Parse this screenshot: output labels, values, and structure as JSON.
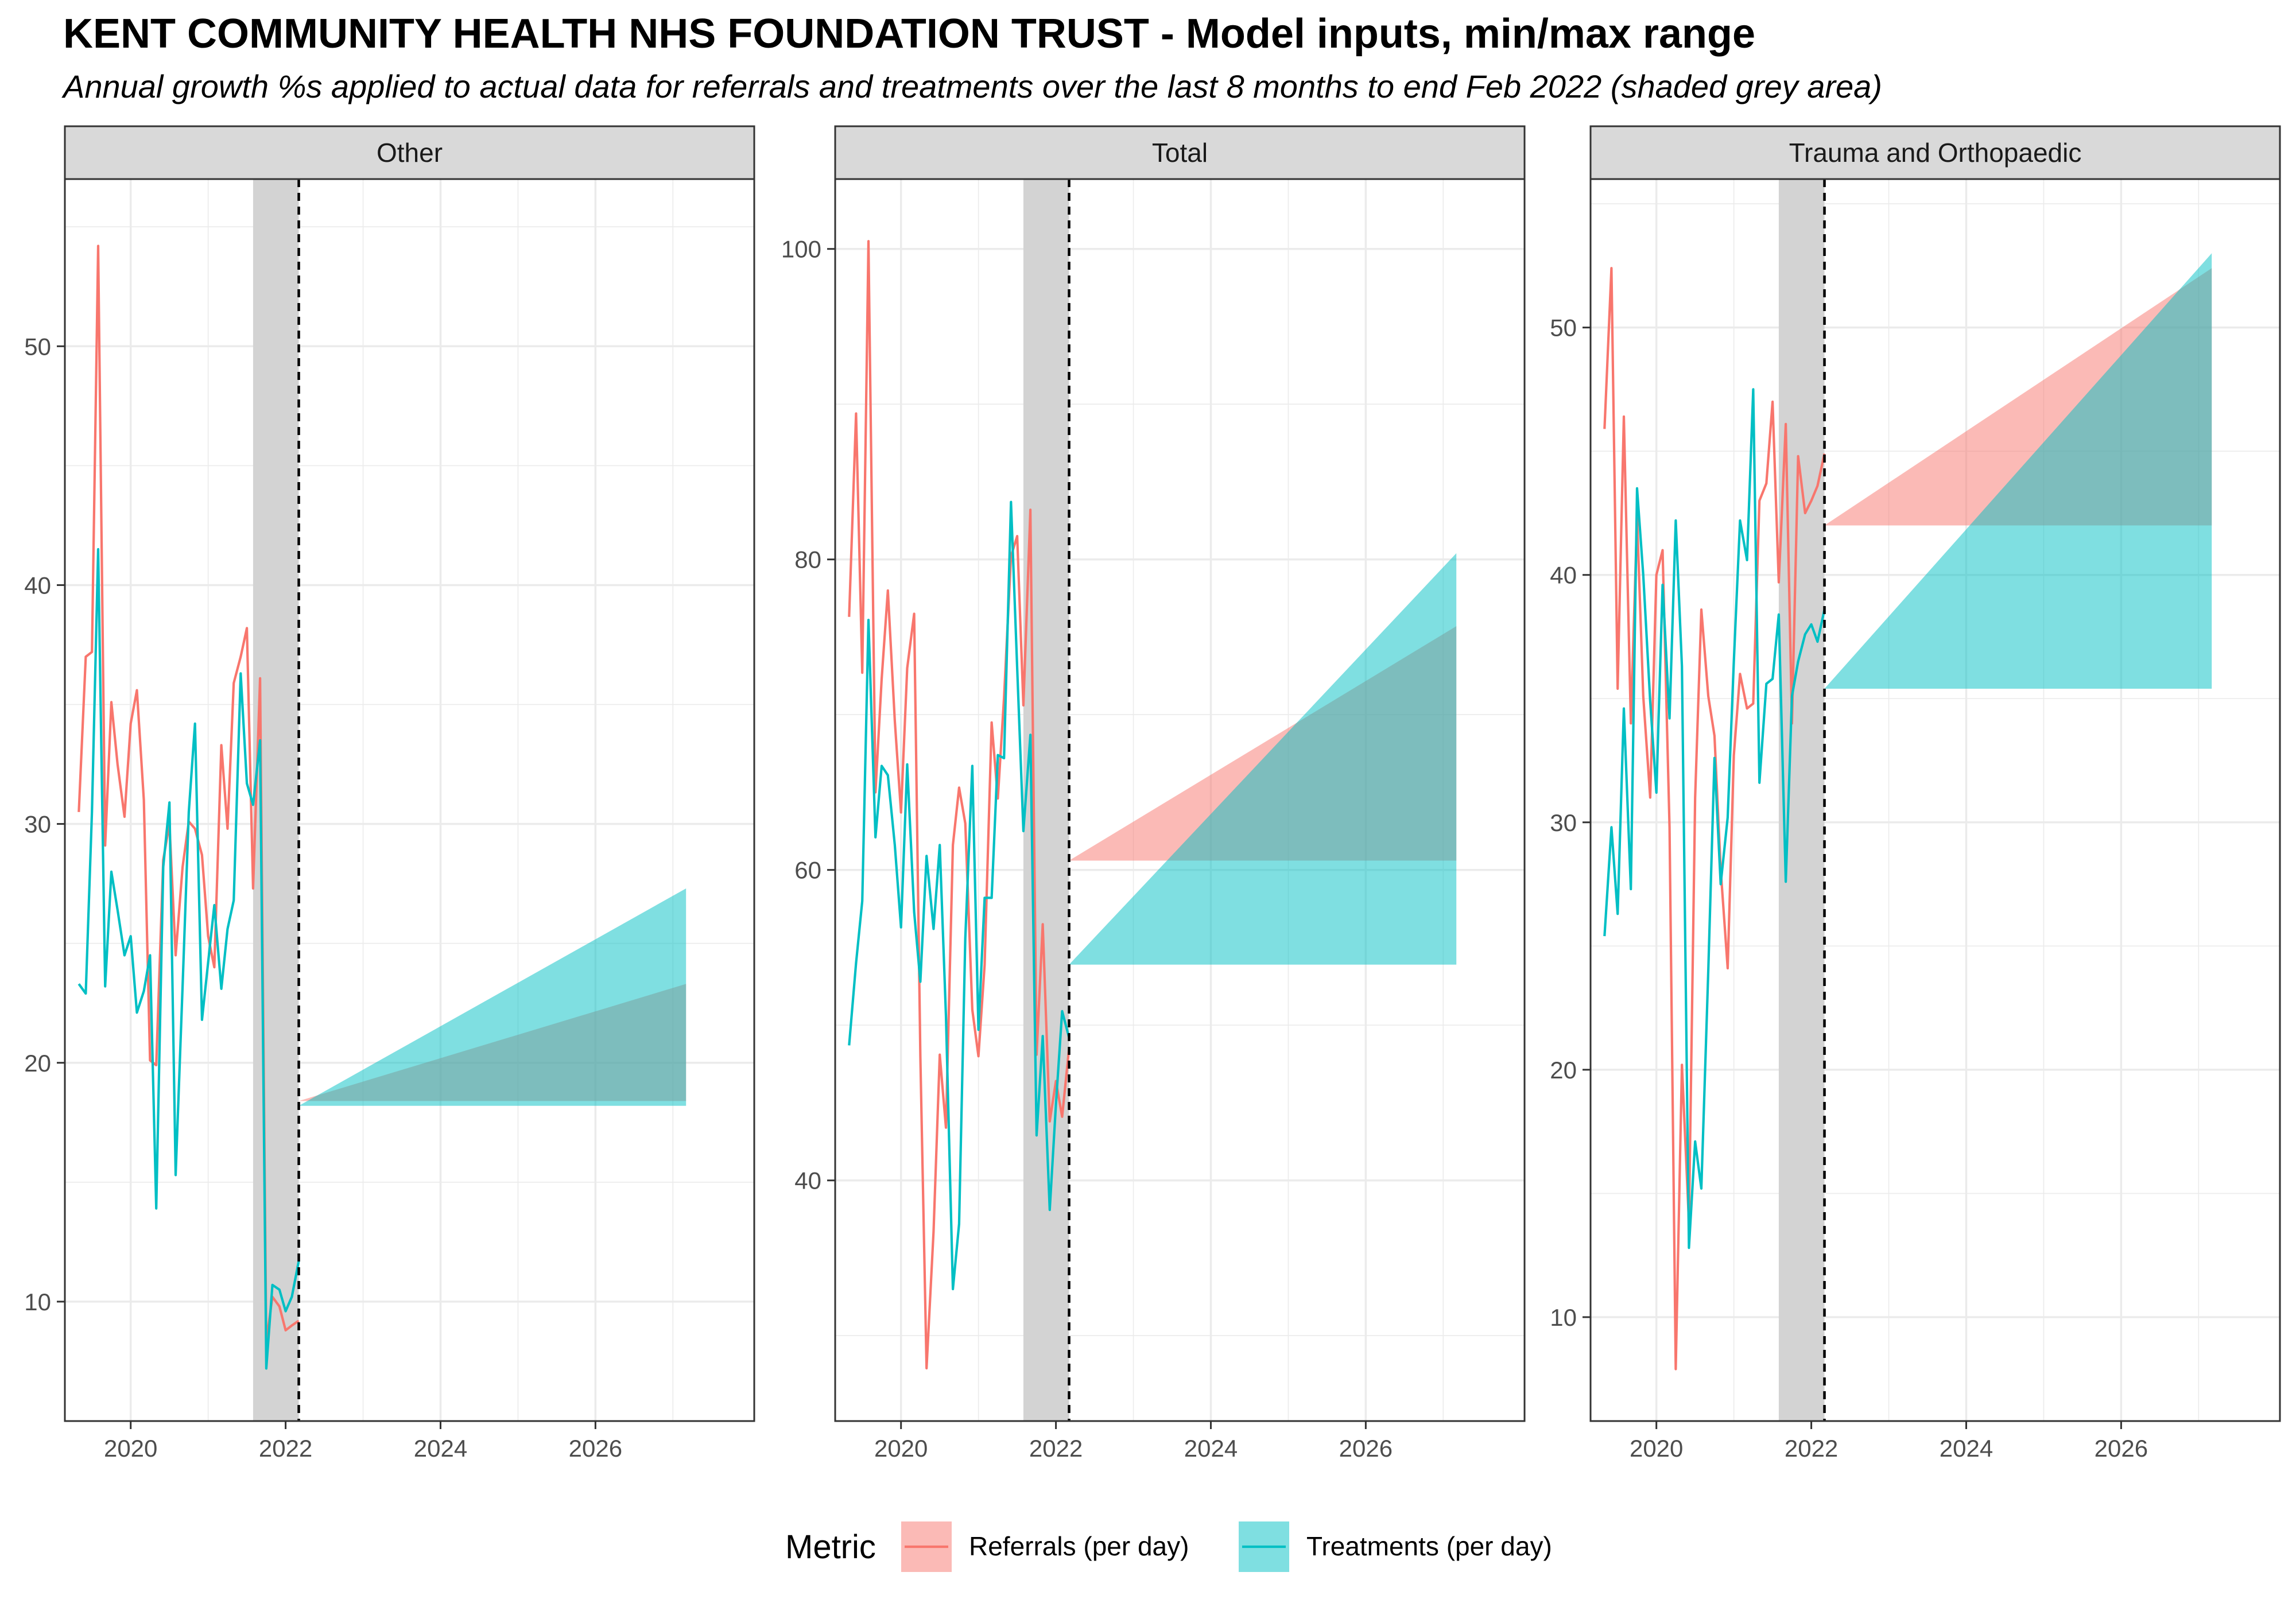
{
  "title": "KENT COMMUNITY HEALTH NHS FOUNDATION TRUST - Model inputs, min/max range",
  "subtitle": "Annual growth %s applied to actual data for referrals and treatments over the last 8 months to end Feb 2022 (shaded grey area)",
  "colors": {
    "referrals": "#F8766D",
    "treatments": "#00BFC4",
    "shade": "#d3d3d3",
    "strip": "#d9d9d9",
    "grid": "#ebebeb"
  },
  "legend": {
    "title": "Metric",
    "items": [
      "Referrals (per day)",
      "Treatments (per day)"
    ],
    "position": "bottom"
  },
  "chart_data": [
    {
      "type": "line",
      "panel": "Other",
      "xlim": [
        2019.15,
        2028.05
      ],
      "ylim": [
        5,
        57
      ],
      "xticks": [
        2020,
        2022,
        2024,
        2026
      ],
      "yticks": [
        10,
        20,
        30,
        40,
        50
      ],
      "shaded_period": [
        2021.58,
        2022.17
      ],
      "cutoff": 2022.17,
      "series": [
        {
          "name": "Referrals (per day)",
          "x": [
            2019.33,
            2019.42,
            2019.5,
            2019.58,
            2019.67,
            2019.75,
            2019.83,
            2019.92,
            2020.0,
            2020.08,
            2020.17,
            2020.25,
            2020.33,
            2020.42,
            2020.5,
            2020.58,
            2020.67,
            2020.75,
            2020.83,
            2020.92,
            2021.0,
            2021.08,
            2021.17,
            2021.25,
            2021.33,
            2021.42,
            2021.5,
            2021.58,
            2021.67,
            2021.75,
            2021.83,
            2021.92,
            2022.0,
            2022.08,
            2022.17
          ],
          "y": [
            30.5,
            37.0,
            37.2,
            54.2,
            29.1,
            35.1,
            32.5,
            30.3,
            34.2,
            35.6,
            31.0,
            20.1,
            19.9,
            28.5,
            30.0,
            24.5,
            28.2,
            30.1,
            29.8,
            28.7,
            25.3,
            24.0,
            33.3,
            29.8,
            35.9,
            37.0,
            38.2,
            27.3,
            36.1,
            8.3,
            10.2,
            9.8,
            8.8,
            9.0,
            9.2
          ]
        },
        {
          "name": "Treatments (per day)",
          "x": [
            2019.33,
            2019.42,
            2019.5,
            2019.58,
            2019.67,
            2019.75,
            2019.83,
            2019.92,
            2020.0,
            2020.08,
            2020.17,
            2020.25,
            2020.33,
            2020.42,
            2020.5,
            2020.58,
            2020.67,
            2020.75,
            2020.83,
            2020.92,
            2021.0,
            2021.08,
            2021.17,
            2021.25,
            2021.33,
            2021.42,
            2021.5,
            2021.58,
            2021.67,
            2021.75,
            2021.83,
            2021.92,
            2022.0,
            2022.08,
            2022.17
          ],
          "y": [
            23.3,
            22.9,
            30.5,
            41.5,
            23.2,
            28.0,
            26.4,
            24.5,
            25.3,
            22.1,
            23.0,
            24.5,
            13.9,
            28.2,
            30.9,
            15.3,
            23.2,
            30.5,
            34.2,
            21.8,
            24.2,
            26.6,
            23.1,
            25.6,
            26.8,
            36.3,
            31.7,
            30.8,
            33.5,
            7.2,
            10.7,
            10.5,
            9.6,
            10.2,
            11.7
          ]
        }
      ],
      "projection_ranges": [
        {
          "name": "Referrals (per day)",
          "x_start": 2022.17,
          "x_end": 2027.17,
          "min": [
            18.4,
            18.4
          ],
          "max": [
            18.4,
            23.3
          ]
        },
        {
          "name": "Treatments (per day)",
          "x_start": 2022.17,
          "x_end": 2027.17,
          "min": [
            18.2,
            18.2
          ],
          "max": [
            18.2,
            27.3
          ]
        }
      ]
    },
    {
      "type": "line",
      "panel": "Total",
      "xlim": [
        2019.15,
        2028.05
      ],
      "ylim": [
        24.5,
        104.5
      ],
      "xticks": [
        2020,
        2022,
        2024,
        2026
      ],
      "yticks": [
        40,
        60,
        80,
        100
      ],
      "shaded_period": [
        2021.58,
        2022.17
      ],
      "cutoff": 2022.17,
      "series": [
        {
          "name": "Referrals (per day)",
          "x": [
            2019.33,
            2019.42,
            2019.5,
            2019.58,
            2019.67,
            2019.75,
            2019.83,
            2019.92,
            2020.0,
            2020.08,
            2020.17,
            2020.25,
            2020.33,
            2020.42,
            2020.5,
            2020.58,
            2020.67,
            2020.75,
            2020.83,
            2020.92,
            2021.0,
            2021.08,
            2021.17,
            2021.25,
            2021.33,
            2021.42,
            2021.5,
            2021.58,
            2021.67,
            2021.75,
            2021.83,
            2021.92,
            2022.0,
            2022.08,
            2022.17
          ],
          "y": [
            76.3,
            89.4,
            72.7,
            100.5,
            65.0,
            72.3,
            78.0,
            69.6,
            63.7,
            73.0,
            76.5,
            48.0,
            27.9,
            36.7,
            48.1,
            43.4,
            61.6,
            65.3,
            63.0,
            51.0,
            48.0,
            53.9,
            69.5,
            64.6,
            71.1,
            80.2,
            81.5,
            70.6,
            83.2,
            48.1,
            56.5,
            43.8,
            46.4,
            44.1,
            48.5
          ]
        },
        {
          "name": "Treatments (per day)",
          "x": [
            2019.33,
            2019.42,
            2019.5,
            2019.58,
            2019.67,
            2019.75,
            2019.83,
            2019.92,
            2020.0,
            2020.08,
            2020.17,
            2020.25,
            2020.33,
            2020.42,
            2020.5,
            2020.58,
            2020.67,
            2020.75,
            2020.83,
            2020.92,
            2021.0,
            2021.08,
            2021.17,
            2021.25,
            2021.33,
            2021.42,
            2021.5,
            2021.58,
            2021.67,
            2021.75,
            2021.83,
            2021.92,
            2022.0,
            2022.08,
            2022.17
          ],
          "y": [
            48.7,
            54.0,
            58.0,
            76.1,
            62.1,
            66.7,
            66.1,
            61.6,
            56.3,
            66.8,
            57.3,
            52.8,
            60.9,
            56.2,
            61.6,
            50.6,
            33.0,
            37.2,
            55.6,
            66.7,
            49.7,
            58.2,
            58.2,
            67.4,
            67.2,
            83.7,
            73.0,
            62.5,
            68.7,
            42.9,
            49.3,
            38.1,
            44.9,
            50.9,
            49.2
          ]
        }
      ],
      "projection_ranges": [
        {
          "name": "Referrals (per day)",
          "x_start": 2022.17,
          "x_end": 2027.17,
          "min": [
            60.6,
            60.6
          ],
          "max": [
            60.6,
            75.7
          ]
        },
        {
          "name": "Treatments (per day)",
          "x_start": 2022.17,
          "x_end": 2027.17,
          "min": [
            53.9,
            53.9
          ],
          "max": [
            53.9,
            80.4
          ]
        }
      ]
    },
    {
      "type": "line",
      "panel": "Trauma and Orthopaedic",
      "xlim": [
        2019.15,
        2028.05
      ],
      "ylim": [
        5.8,
        56.0
      ],
      "xticks": [
        2020,
        2022,
        2024,
        2026
      ],
      "yticks": [
        10,
        20,
        30,
        40,
        50
      ],
      "shaded_period": [
        2021.58,
        2022.17
      ],
      "cutoff": 2022.17,
      "series": [
        {
          "name": "Referrals (per day)",
          "x": [
            2019.33,
            2019.42,
            2019.5,
            2019.58,
            2019.67,
            2019.75,
            2019.83,
            2019.92,
            2020.0,
            2020.08,
            2020.17,
            2020.25,
            2020.33,
            2020.42,
            2020.5,
            2020.58,
            2020.67,
            2020.75,
            2020.83,
            2020.92,
            2021.0,
            2021.08,
            2021.17,
            2021.25,
            2021.33,
            2021.42,
            2021.5,
            2021.58,
            2021.67,
            2021.75,
            2021.83,
            2021.92,
            2022.0,
            2022.08,
            2022.17
          ],
          "y": [
            45.9,
            52.4,
            35.4,
            46.4,
            34.0,
            42.3,
            35.1,
            31.0,
            40.0,
            41.0,
            29.8,
            7.9,
            20.2,
            13.8,
            31.0,
            38.6,
            35.1,
            33.5,
            28.1,
            24.1,
            32.7,
            36.0,
            34.6,
            34.8,
            43.0,
            43.7,
            47.0,
            39.7,
            46.1,
            34.0,
            44.8,
            42.5,
            43.0,
            43.6,
            44.9
          ]
        },
        {
          "name": "Treatments (per day)",
          "x": [
            2019.33,
            2019.42,
            2019.5,
            2019.58,
            2019.67,
            2019.75,
            2019.83,
            2019.92,
            2020.0,
            2020.08,
            2020.17,
            2020.25,
            2020.33,
            2020.42,
            2020.5,
            2020.58,
            2020.67,
            2020.75,
            2020.83,
            2020.92,
            2021.0,
            2021.08,
            2021.17,
            2021.25,
            2021.33,
            2021.42,
            2021.5,
            2021.58,
            2021.67,
            2021.75,
            2021.83,
            2021.92,
            2022.0,
            2022.08,
            2022.17
          ],
          "y": [
            25.4,
            29.8,
            26.3,
            34.6,
            27.3,
            43.5,
            40.0,
            34.9,
            31.2,
            39.6,
            34.2,
            42.2,
            36.3,
            12.8,
            17.1,
            15.2,
            24.0,
            32.6,
            27.5,
            30.2,
            36.5,
            42.2,
            40.6,
            47.5,
            31.6,
            35.6,
            35.8,
            38.4,
            27.6,
            35.1,
            36.5,
            37.6,
            38.0,
            37.3,
            38.6
          ]
        }
      ],
      "projection_ranges": [
        {
          "name": "Referrals (per day)",
          "x_start": 2022.17,
          "x_end": 2027.17,
          "min": [
            42.0,
            42.0
          ],
          "max": [
            42.0,
            52.4
          ]
        },
        {
          "name": "Treatments (per day)",
          "x_start": 2022.17,
          "x_end": 2027.17,
          "min": [
            35.4,
            35.4
          ],
          "max": [
            35.4,
            53.0
          ]
        }
      ]
    }
  ]
}
